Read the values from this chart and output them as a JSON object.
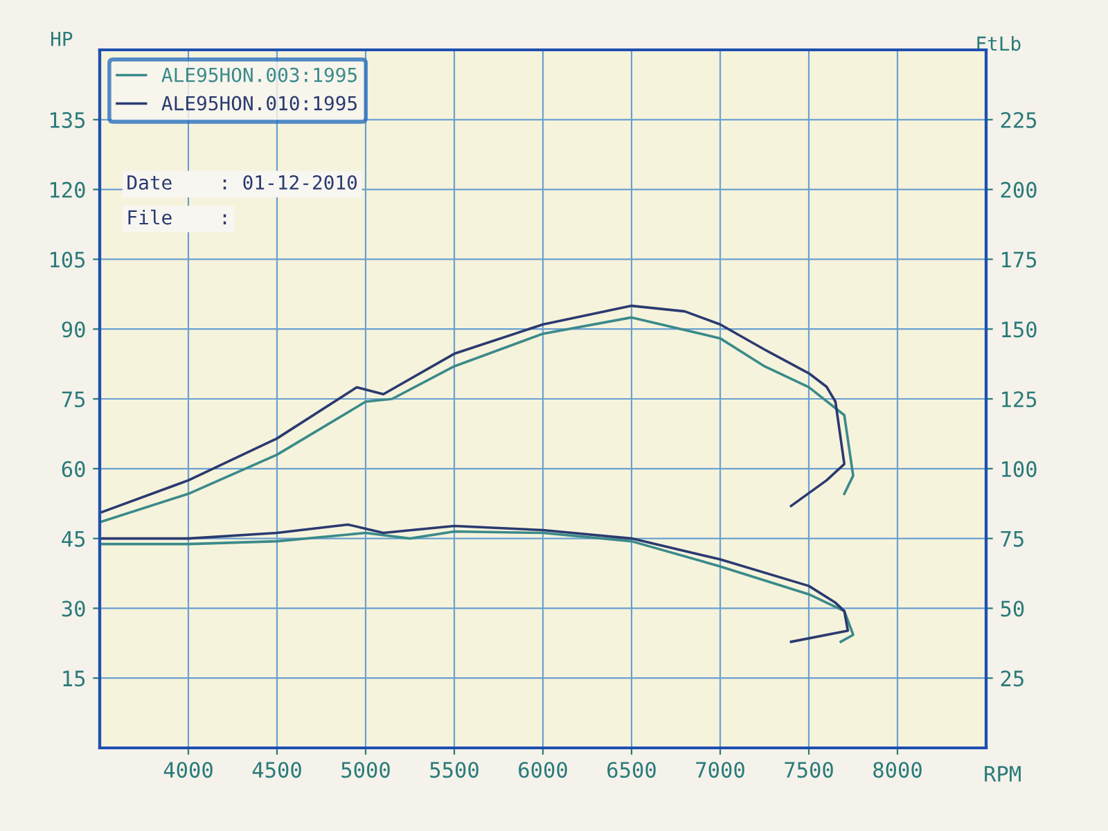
{
  "chart_data": {
    "type": "line",
    "xlabel": "RPM",
    "ylabel": "HP",
    "y2label": "FtLb",
    "xlim": [
      3500,
      8500
    ],
    "xticks": [
      4000,
      4500,
      5000,
      5500,
      6000,
      6500,
      7000,
      7500,
      8000
    ],
    "ylim": [
      0,
      150
    ],
    "yticks": [
      15,
      30,
      45,
      60,
      75,
      90,
      105,
      120,
      135
    ],
    "y2lim": [
      0,
      250
    ],
    "y2ticks": [
      25,
      50,
      75,
      100,
      125,
      150,
      175,
      200,
      225
    ],
    "grid": true,
    "legend": "top left",
    "line_style": "solid",
    "marker": "none",
    "annotations": [
      "Date    : 01-12-2010",
      "File    :"
    ],
    "series": [
      {
        "name": "ALE95HON.003:1995",
        "color": "#3a8a8a",
        "x": [
          3500,
          4000,
          4500,
          5000,
          5150,
          5500,
          6000,
          6500,
          7000,
          7250,
          7500,
          7700,
          7750,
          7700
        ],
        "values": [
          48.5,
          54.6,
          63,
          74.4,
          75,
          82,
          89,
          92.5,
          88,
          82,
          77.5,
          71.5,
          58.5,
          54.6
        ]
      },
      {
        "name": "ALE95HON.010:1995",
        "color": "#2a3a70",
        "x": [
          3500,
          4000,
          4500,
          4950,
          5100,
          5500,
          6000,
          6500,
          6800,
          7000,
          7250,
          7500,
          7600,
          7650,
          7700,
          7600,
          7400
        ],
        "values": [
          50.5,
          57.5,
          66.5,
          77.5,
          76,
          84.7,
          91,
          95,
          93.8,
          91,
          85.6,
          80.5,
          77.6,
          74.4,
          61,
          57.5,
          52
        ]
      },
      {
        "color": "#3a8a8a",
        "axis": "y2",
        "x": [
          3500,
          4000,
          4500,
          5000,
          5250,
          5500,
          6000,
          6500,
          7000,
          7500,
          7700,
          7750,
          7680
        ],
        "values": [
          73,
          73,
          74,
          77,
          75,
          77.5,
          77,
          74,
          65,
          55,
          49,
          40.5,
          38
        ]
      },
      {
        "color": "#2a3a70",
        "axis": "y2",
        "x": [
          3500,
          4000,
          4500,
          4900,
          5100,
          5500,
          6000,
          6500,
          7000,
          7500,
          7650,
          7700,
          7720,
          7400
        ],
        "values": [
          75,
          75,
          77,
          80,
          77,
          79.5,
          78,
          75,
          67.5,
          58,
          52,
          49,
          42,
          38
        ]
      }
    ]
  }
}
